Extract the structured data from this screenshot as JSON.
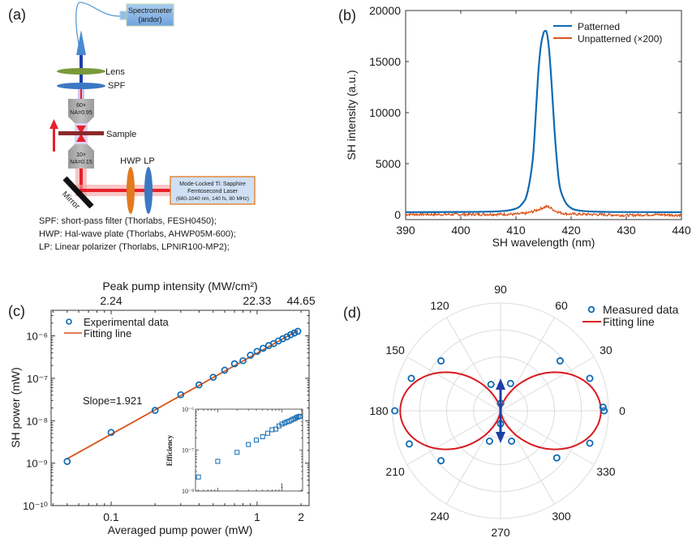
{
  "panels": {
    "a": {
      "label": "(a)",
      "spectrometer": [
        "Spectrometer",
        "(andor)"
      ],
      "lens": "Lens",
      "spf": "SPF",
      "obj_top": [
        "60×",
        "NA=0.95"
      ],
      "sample": "Sample",
      "obj_bottom": [
        "10×",
        "NA=0.15"
      ],
      "hwp": "HWP",
      "lp": "LP",
      "mirror": "Mirror",
      "laser": [
        "Mode-Locked Ti: Sapphire",
        "Femtosecond Laser",
        "(680-1040 nm, 140 fs, 80 MHz)"
      ],
      "notes": [
        "SPF: short-pass filter (Thorlabs, FESH0450);",
        "HWP: Hal-wave plate (Thorlabs, AHWP05M-600);",
        "LP: Linear polarizer (Thorlabs, LPNIR100-MP2);"
      ],
      "colors": {
        "laser": "#e8202a",
        "sh": "#1f3fa6",
        "lens": "#7a9a3a",
        "spf": "#3b78c4",
        "hwp": "#e37a1e",
        "lp": "#3b78c4",
        "sample": "#8b2a2a",
        "box": "#8fb8e6",
        "laser_box_border": "#e37a1e"
      }
    }
  },
  "chart_data": [
    {
      "id": "b",
      "panel_label": "(b)",
      "type": "line",
      "title": "",
      "xlabel": "SH wavelength (nm)",
      "ylabel": "SH intensity (a.u.)",
      "xlim": [
        390,
        440
      ],
      "ylim": [
        -300,
        20000
      ],
      "xticks": [
        390,
        400,
        410,
        420,
        430,
        440
      ],
      "yticks": [
        0,
        5000,
        10000,
        15000,
        20000
      ],
      "legend_position": "top-right",
      "series": [
        {
          "name": "Patterned",
          "color": "#0d6ab4",
          "x": [
            390,
            400,
            405,
            408,
            410,
            411,
            412,
            413,
            413.5,
            414,
            414.5,
            415,
            415.3,
            415.6,
            416,
            416.5,
            417,
            417.5,
            418,
            419,
            420,
            421,
            423,
            426,
            430,
            440
          ],
          "y": [
            250,
            270,
            300,
            380,
            600,
            1000,
            2000,
            5200,
            9000,
            13500,
            16500,
            17800,
            18000,
            17800,
            16200,
            12500,
            8200,
            4800,
            2600,
            1200,
            650,
            450,
            330,
            280,
            260,
            250
          ]
        },
        {
          "name": "Unpatterned (×200)",
          "color": "#d9541a",
          "x": [
            390,
            395,
            400,
            405,
            410,
            412,
            413,
            414,
            415,
            415.5,
            416,
            416.5,
            417,
            418,
            419,
            420,
            425,
            430,
            435,
            440
          ],
          "y": [
            40,
            30,
            20,
            40,
            50,
            150,
            300,
            500,
            700,
            800,
            750,
            600,
            400,
            200,
            100,
            60,
            20,
            -60,
            20,
            -50
          ]
        }
      ]
    },
    {
      "id": "c",
      "panel_label": "(c)",
      "type": "scatter",
      "title": "",
      "xlabel": "Averaged pump power (mW)",
      "ylabel": "SH power (mW)",
      "top_xlabel": "Peak pump intensity (MW/cm²)",
      "top_xticks": [
        {
          "value": 0.1,
          "label": "2.24"
        },
        {
          "value": 1,
          "label": "22.33"
        },
        {
          "value": 2,
          "label": "44.65"
        }
      ],
      "xscale": "log",
      "yscale": "log",
      "xlim": [
        0.0388,
        2.27
      ],
      "ylim": [
        1e-10,
        4e-06
      ],
      "xticks": [
        {
          "value": 0.1,
          "label": "0.1"
        },
        {
          "value": 1,
          "label": "1"
        },
        {
          "value": 2,
          "label": "2"
        }
      ],
      "yticks": [
        {
          "value": 1e-10,
          "label": "10⁻¹⁰"
        },
        {
          "value": 1e-09,
          "label": "10⁻⁹"
        },
        {
          "value": 1e-08,
          "label": "10⁻⁸"
        },
        {
          "value": 1e-07,
          "label": "10⁻⁷"
        },
        {
          "value": 1e-06,
          "label": "10⁻⁶"
        }
      ],
      "legend_position": "top-left",
      "annotation": "Slope=1.921",
      "series": [
        {
          "name": "Experimental data",
          "kind": "markers",
          "color": "#0d6ab4",
          "x": [
            0.05,
            0.1,
            0.2,
            0.3,
            0.4,
            0.5,
            0.6,
            0.7,
            0.8,
            0.9,
            1.0,
            1.1,
            1.2,
            1.3,
            1.4,
            1.5,
            1.6,
            1.7,
            1.8,
            1.9
          ],
          "y": [
            1.1e-09,
            5.3e-09,
            1.75e-08,
            4.1e-08,
            7e-08,
            1.06e-07,
            1.55e-07,
            2.2e-07,
            2.6e-07,
            3.5e-07,
            4.3e-07,
            5.1e-07,
            5.9e-07,
            6.6e-07,
            7.6e-07,
            8.6e-07,
            9.5e-07,
            1.07e-06,
            1.17e-06,
            1.28e-06
          ]
        },
        {
          "name": "Fitting line",
          "kind": "line",
          "color": "#d9541a",
          "slope": 1.921,
          "x": [
            0.05,
            1.9
          ],
          "y": [
            1.27e-09,
            1.34e-06
          ]
        }
      ],
      "inset": {
        "type": "scatter",
        "ylabel": "Efficiency",
        "xscale": "log",
        "yscale": "log",
        "xlim": [
          0.045,
          2.1
        ],
        "ylim": [
          1e-08,
          1e-06
        ],
        "xticks": [
          {
            "value": 1,
            "label": "1"
          }
        ],
        "yticks": [
          {
            "value": 1e-08,
            "label": "10⁻⁸"
          },
          {
            "value": 1e-07,
            "label": "10⁻⁷"
          },
          {
            "value": 1e-06,
            "label": "10⁻⁶"
          }
        ],
        "series": [
          {
            "name": "Efficiency",
            "kind": "square-markers",
            "color": "#0d6ab4",
            "x": [
              0.05,
              0.1,
              0.2,
              0.3,
              0.4,
              0.5,
              0.6,
              0.7,
              0.8,
              0.9,
              1.0,
              1.1,
              1.2,
              1.3,
              1.4,
              1.5,
              1.6,
              1.7,
              1.8,
              1.9
            ],
            "y": [
              2.2e-08,
              5.3e-08,
              8.8e-08,
              1.37e-07,
              1.75e-07,
              2.12e-07,
              2.58e-07,
              3.14e-07,
              3.25e-07,
              3.89e-07,
              4.3e-07,
              4.6e-07,
              4.9e-07,
              5.1e-07,
              5.4e-07,
              5.7e-07,
              5.9e-07,
              6.3e-07,
              6.5e-07,
              6.7e-07
            ]
          }
        ]
      }
    },
    {
      "id": "d",
      "panel_label": "(d)",
      "type": "polar",
      "title": "",
      "theta_ticks": [
        0,
        30,
        60,
        90,
        120,
        150,
        180,
        210,
        240,
        270,
        300,
        330
      ],
      "r_rings": [
        0.25,
        0.5,
        0.75,
        1.0
      ],
      "legend_position": "top-right",
      "polarization_arrow": "vertical (90°–270°)",
      "series": [
        {
          "name": "Measured data",
          "kind": "markers",
          "color": "#0d6ab4",
          "theta": [
            0,
            2,
            20,
            40,
            70,
            90,
            110,
            140,
            160,
            180,
            200,
            220,
            250,
            270,
            290,
            320,
            340
          ],
          "r": [
            0.96,
            0.95,
            0.88,
            0.72,
            0.27,
            0.07,
            0.26,
            0.72,
            0.88,
            0.98,
            0.9,
            0.72,
            0.3,
            0.12,
            0.3,
            0.68,
            0.88
          ]
        },
        {
          "name": "Fitting line",
          "kind": "line",
          "color": "#d8191f",
          "model": "r = 0.93·cos²θ",
          "amplitude": 0.93
        }
      ]
    }
  ]
}
